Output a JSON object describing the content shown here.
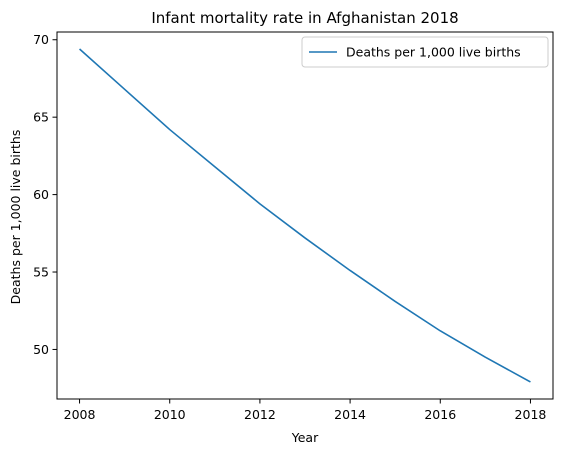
{
  "chart_data": {
    "type": "line",
    "title": "Infant mortality rate in Afghanistan 2018",
    "xlabel": "Year",
    "ylabel": "Deaths per 1,000 live births",
    "x": [
      2008,
      2009,
      2010,
      2011,
      2012,
      2013,
      2014,
      2015,
      2016,
      2017,
      2018
    ],
    "series": [
      {
        "name": "Deaths per 1,000 live births",
        "color": "#1f77b4",
        "values": [
          69.4,
          66.8,
          64.2,
          61.8,
          59.4,
          57.2,
          55.1,
          53.1,
          51.2,
          49.5,
          47.9
        ]
      }
    ],
    "xlim": [
      2007.5,
      2018.5
    ],
    "ylim": [
      46.8,
      70.5
    ],
    "xticks": [
      2008,
      2010,
      2012,
      2014,
      2016,
      2018
    ],
    "yticks": [
      50,
      55,
      60,
      65,
      70
    ],
    "grid": false,
    "legend_position": "top-right"
  }
}
